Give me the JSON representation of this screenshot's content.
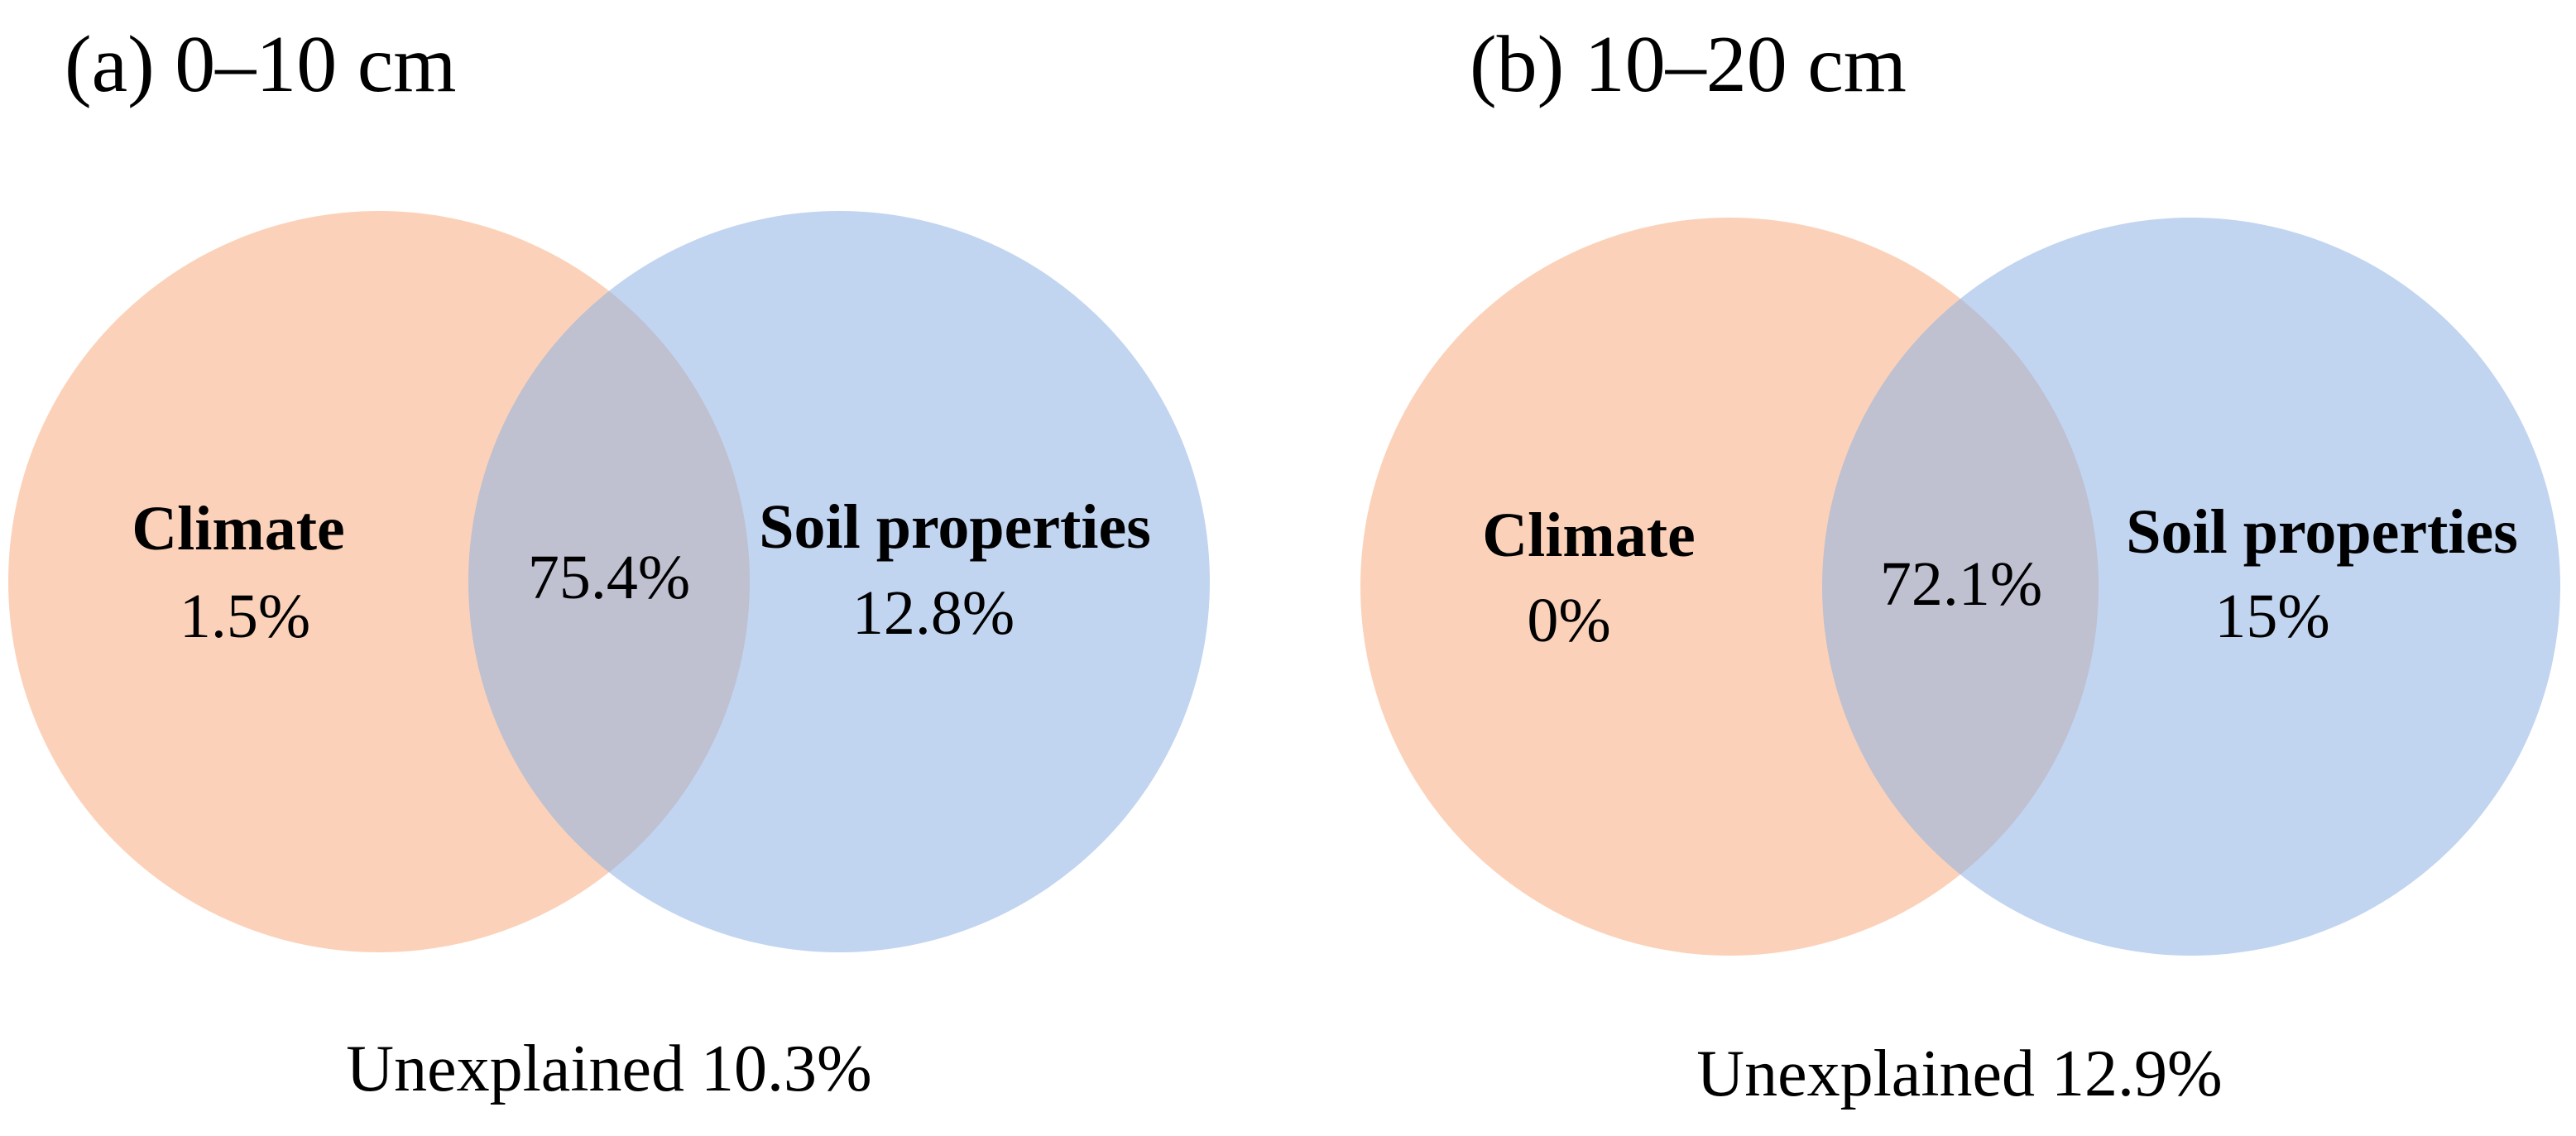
{
  "colors": {
    "climate": "#f9b48a",
    "soil": "#8eb0e3",
    "overlap": "#e9c1b3",
    "text": "#000000",
    "background": "#ffffff"
  },
  "panels": [
    {
      "title": "(a) 0–10 cm",
      "climate": {
        "label": "Climate",
        "value": "1.5%"
      },
      "soil": {
        "label": "Soil properties",
        "value": "12.8%"
      },
      "shared": {
        "value": "75.4%"
      },
      "unexplained": "Unexplained 10.3%"
    },
    {
      "title": "(b) 10–20 cm",
      "climate": {
        "label": "Climate",
        "value": "0%"
      },
      "soil": {
        "label": "Soil properties",
        "value": "15%"
      },
      "shared": {
        "value": "72.1%"
      },
      "unexplained": "Unexplained 12.9%"
    }
  ]
}
